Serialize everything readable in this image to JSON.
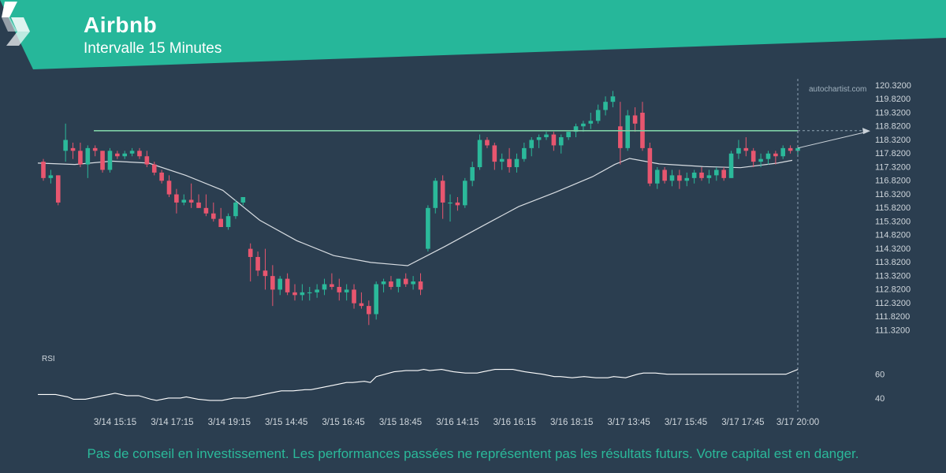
{
  "header": {
    "title": "Airbnb",
    "subtitle": "Intervalle 15 Minutes"
  },
  "watermark": "autochartist.com",
  "rsi_label": "RSI",
  "disclaimer": "Pas de conseil en investissement. Les performances passées ne représentent pas les résultats futurs. Votre capital est en danger.",
  "colors": {
    "background": "#2b3e50",
    "banner": "#26b79a",
    "bull": "#2bb99a",
    "bear": "#e8566f",
    "line": "#d8dde2",
    "resistance": "#7ed0a5"
  },
  "chart_data": [
    {
      "type": "candlestick",
      "title": "Airbnb",
      "subtitle": "Intervalle 15 Minutes",
      "ylim": [
        110.9,
        120.4
      ],
      "y_ticks": [
        "120.3200",
        "119.8200",
        "119.3200",
        "118.8200",
        "118.3200",
        "117.8200",
        "117.3200",
        "116.8200",
        "116.3200",
        "115.8200",
        "115.3200",
        "114.8200",
        "114.3200",
        "113.8200",
        "113.3200",
        "112.8200",
        "112.3200",
        "111.8200",
        "111.3200"
      ],
      "x_ticks": [
        "3/14 15:15",
        "3/14 17:15",
        "3/14 19:15",
        "3/15 14:45",
        "3/15 16:45",
        "3/15 18:45",
        "3/16 14:15",
        "3/16 16:15",
        "3/16 18:15",
        "3/17 13:45",
        "3/17 15:45",
        "3/17 17:45"
      ],
      "last_time_label": "3/17 20:00",
      "resistance_level": 118.64,
      "projection": {
        "from": 118.0,
        "to": 118.6
      },
      "candles": [
        [
          117.5,
          117.6,
          116.8,
          116.9
        ],
        [
          116.9,
          117.2,
          116.7,
          117.0
        ],
        [
          117.0,
          117.0,
          115.9,
          116.0
        ],
        [
          117.9,
          118.9,
          117.5,
          118.3
        ],
        [
          118.0,
          118.2,
          117.6,
          117.9
        ],
        [
          117.9,
          118.2,
          117.3,
          117.4
        ],
        [
          117.4,
          118.1,
          116.9,
          118.0
        ],
        [
          118.0,
          118.1,
          117.7,
          117.9
        ],
        [
          117.9,
          117.9,
          117.1,
          117.2
        ],
        [
          117.2,
          118.0,
          117.1,
          117.9
        ],
        [
          117.8,
          117.9,
          117.6,
          117.7
        ],
        [
          117.7,
          117.9,
          117.6,
          117.8
        ],
        [
          117.8,
          118.0,
          117.7,
          117.9
        ],
        [
          117.9,
          118.0,
          117.6,
          117.7
        ],
        [
          117.7,
          117.9,
          117.3,
          117.4
        ],
        [
          117.4,
          117.5,
          117.0,
          117.1
        ],
        [
          117.1,
          117.2,
          116.7,
          116.8
        ],
        [
          116.8,
          117.0,
          116.2,
          116.3
        ],
        [
          116.3,
          116.5,
          115.6,
          116.0
        ],
        [
          116.0,
          116.3,
          115.9,
          116.1
        ],
        [
          116.1,
          116.7,
          115.8,
          116.0
        ],
        [
          116.0,
          116.3,
          115.8,
          115.8
        ],
        [
          115.8,
          116.3,
          115.5,
          115.6
        ],
        [
          115.6,
          116.0,
          115.3,
          115.4
        ],
        [
          115.4,
          115.8,
          115.1,
          115.1
        ],
        [
          115.1,
          115.6,
          115.0,
          115.5
        ],
        [
          115.5,
          116.1,
          115.4,
          116.0
        ],
        [
          116.0,
          116.2,
          115.9,
          116.2
        ],
        [
          114.3,
          114.5,
          113.1,
          114.0
        ],
        [
          114.0,
          114.2,
          113.3,
          113.5
        ],
        [
          113.5,
          114.3,
          112.8,
          113.3
        ],
        [
          113.3,
          113.7,
          112.2,
          112.8
        ],
        [
          112.8,
          113.3,
          112.6,
          113.2
        ],
        [
          113.2,
          113.4,
          112.6,
          112.7
        ],
        [
          112.7,
          113.0,
          112.4,
          112.6
        ],
        [
          112.6,
          113.0,
          112.4,
          112.7
        ],
        [
          112.7,
          112.9,
          112.4,
          112.7
        ],
        [
          112.7,
          113.0,
          112.5,
          112.8
        ],
        [
          112.8,
          113.2,
          112.6,
          113.0
        ],
        [
          113.0,
          113.4,
          112.8,
          112.9
        ],
        [
          112.9,
          113.2,
          112.4,
          112.7
        ],
        [
          112.7,
          113.0,
          112.4,
          112.8
        ],
        [
          112.8,
          113.0,
          112.1,
          112.3
        ],
        [
          112.3,
          112.7,
          112.1,
          112.2
        ],
        [
          112.2,
          112.4,
          111.5,
          111.9
        ],
        [
          111.9,
          113.1,
          111.7,
          113.0
        ],
        [
          113.0,
          113.2,
          112.7,
          113.1
        ],
        [
          113.1,
          113.3,
          112.8,
          112.9
        ],
        [
          112.9,
          113.2,
          112.7,
          113.2
        ],
        [
          113.2,
          113.4,
          112.9,
          113.0
        ],
        [
          113.0,
          113.3,
          112.8,
          113.1
        ],
        [
          113.1,
          113.4,
          112.6,
          112.8
        ],
        [
          114.3,
          115.9,
          114.2,
          115.8
        ],
        [
          115.8,
          116.9,
          115.6,
          116.8
        ],
        [
          116.8,
          117.0,
          115.4,
          116.0
        ],
        [
          116.0,
          116.3,
          115.3,
          116.0
        ],
        [
          116.0,
          116.2,
          115.7,
          115.9
        ],
        [
          115.9,
          116.9,
          115.8,
          116.8
        ],
        [
          116.8,
          117.5,
          116.6,
          117.3
        ],
        [
          117.3,
          118.5,
          117.2,
          118.3
        ],
        [
          118.3,
          118.4,
          118.0,
          118.1
        ],
        [
          118.1,
          118.2,
          117.2,
          117.5
        ],
        [
          117.5,
          117.8,
          117.2,
          117.6
        ],
        [
          117.6,
          118.0,
          117.1,
          117.3
        ],
        [
          117.3,
          117.8,
          117.1,
          117.6
        ],
        [
          117.6,
          118.2,
          117.5,
          118.0
        ],
        [
          118.0,
          118.4,
          117.7,
          118.3
        ],
        [
          118.3,
          118.5,
          118.0,
          118.4
        ],
        [
          118.4,
          118.6,
          118.3,
          118.5
        ],
        [
          118.5,
          118.6,
          117.9,
          118.1
        ],
        [
          118.1,
          118.5,
          117.8,
          118.4
        ],
        [
          118.4,
          118.6,
          118.3,
          118.6
        ],
        [
          118.6,
          118.9,
          118.4,
          118.8
        ],
        [
          118.8,
          119.0,
          118.6,
          118.9
        ],
        [
          118.9,
          119.3,
          118.7,
          119.0
        ],
        [
          119.0,
          119.6,
          118.9,
          119.4
        ],
        [
          119.4,
          119.9,
          119.2,
          119.7
        ],
        [
          119.7,
          120.1,
          119.5,
          119.9
        ],
        [
          118.8,
          119.7,
          117.4,
          118.0
        ],
        [
          118.0,
          119.4,
          117.9,
          119.2
        ],
        [
          119.2,
          119.5,
          118.6,
          118.9
        ],
        [
          119.3,
          119.7,
          117.9,
          118.0
        ],
        [
          118.0,
          118.2,
          116.6,
          116.7
        ],
        [
          116.7,
          117.3,
          116.5,
          117.2
        ],
        [
          117.2,
          117.3,
          116.7,
          116.8
        ],
        [
          116.8,
          117.2,
          116.6,
          117.0
        ],
        [
          117.0,
          117.2,
          116.5,
          116.8
        ],
        [
          116.8,
          117.1,
          116.6,
          116.9
        ],
        [
          116.9,
          117.2,
          116.7,
          117.1
        ],
        [
          117.1,
          117.3,
          116.8,
          116.9
        ],
        [
          116.9,
          117.2,
          116.7,
          117.0
        ],
        [
          117.0,
          117.3,
          116.8,
          117.2
        ],
        [
          117.2,
          117.3,
          116.8,
          116.9
        ],
        [
          116.9,
          117.9,
          116.9,
          117.8
        ],
        [
          117.8,
          118.3,
          117.6,
          118.0
        ],
        [
          118.0,
          118.4,
          117.7,
          117.9
        ],
        [
          117.9,
          118.0,
          117.3,
          117.5
        ],
        [
          117.5,
          117.8,
          117.3,
          117.6
        ],
        [
          117.6,
          117.9,
          117.4,
          117.8
        ],
        [
          117.8,
          117.9,
          117.4,
          117.7
        ],
        [
          117.7,
          118.1,
          117.6,
          118.0
        ],
        [
          118.0,
          118.1,
          117.8,
          117.9
        ],
        [
          117.9,
          118.1,
          117.7,
          118.0
        ]
      ],
      "moving_average": [
        [
          0,
          117.45
        ],
        [
          5,
          117.4
        ],
        [
          10,
          117.52
        ],
        [
          15,
          117.45
        ],
        [
          20,
          117.0
        ],
        [
          25,
          116.45
        ],
        [
          30,
          115.35
        ],
        [
          35,
          114.6
        ],
        [
          40,
          114.05
        ],
        [
          45,
          113.8
        ],
        [
          50,
          113.68
        ],
        [
          55,
          114.38
        ],
        [
          60,
          115.12
        ],
        [
          65,
          115.85
        ],
        [
          70,
          116.38
        ],
        [
          75,
          116.95
        ],
        [
          78,
          117.4
        ],
        [
          80,
          117.62
        ],
        [
          84,
          117.42
        ],
        [
          90,
          117.32
        ],
        [
          95,
          117.28
        ],
        [
          100,
          117.45
        ],
        [
          102,
          117.55
        ]
      ]
    },
    {
      "type": "line",
      "name": "RSI",
      "y_ticks": [
        "60",
        "40"
      ],
      "ylim": [
        30,
        75
      ],
      "values": [
        [
          0,
          43
        ],
        [
          3,
          43
        ],
        [
          5,
          41
        ],
        [
          6,
          39
        ],
        [
          8,
          39
        ],
        [
          10,
          41
        ],
        [
          12,
          43
        ],
        [
          13,
          44
        ],
        [
          15,
          42
        ],
        [
          17,
          42
        ],
        [
          19,
          39
        ],
        [
          20,
          38
        ],
        [
          22,
          40
        ],
        [
          24,
          40
        ],
        [
          25,
          41
        ],
        [
          27,
          39
        ],
        [
          29,
          38
        ],
        [
          31,
          38
        ],
        [
          33,
          40
        ],
        [
          35,
          40
        ],
        [
          37,
          42
        ],
        [
          39,
          44
        ],
        [
          41,
          46
        ],
        [
          43,
          46
        ],
        [
          45,
          47
        ],
        [
          46,
          47
        ],
        [
          48,
          49
        ],
        [
          50,
          51
        ],
        [
          52,
          53
        ],
        [
          53,
          53
        ],
        [
          55,
          54
        ],
        [
          56,
          53
        ],
        [
          57,
          58
        ],
        [
          60,
          62
        ],
        [
          62,
          63
        ],
        [
          64,
          63
        ],
        [
          65,
          64
        ],
        [
          66,
          63
        ],
        [
          68,
          64
        ],
        [
          70,
          62
        ],
        [
          72,
          61
        ],
        [
          74,
          61
        ],
        [
          75,
          62
        ],
        [
          77,
          64
        ],
        [
          80,
          64
        ],
        [
          82,
          62
        ],
        [
          85,
          60
        ],
        [
          87,
          58
        ],
        [
          88,
          58
        ],
        [
          90,
          57
        ],
        [
          92,
          58
        ],
        [
          94,
          57
        ],
        [
          96,
          57
        ],
        [
          97,
          58
        ],
        [
          99,
          57
        ],
        [
          101,
          60
        ],
        [
          102,
          61
        ],
        [
          104,
          61
        ],
        [
          106,
          60
        ],
        [
          110,
          60
        ],
        [
          113,
          60
        ],
        [
          116,
          60
        ],
        [
          120,
          60
        ],
        [
          123,
          60
        ],
        [
          126,
          60
        ],
        [
          128,
          64
        ]
      ]
    }
  ]
}
